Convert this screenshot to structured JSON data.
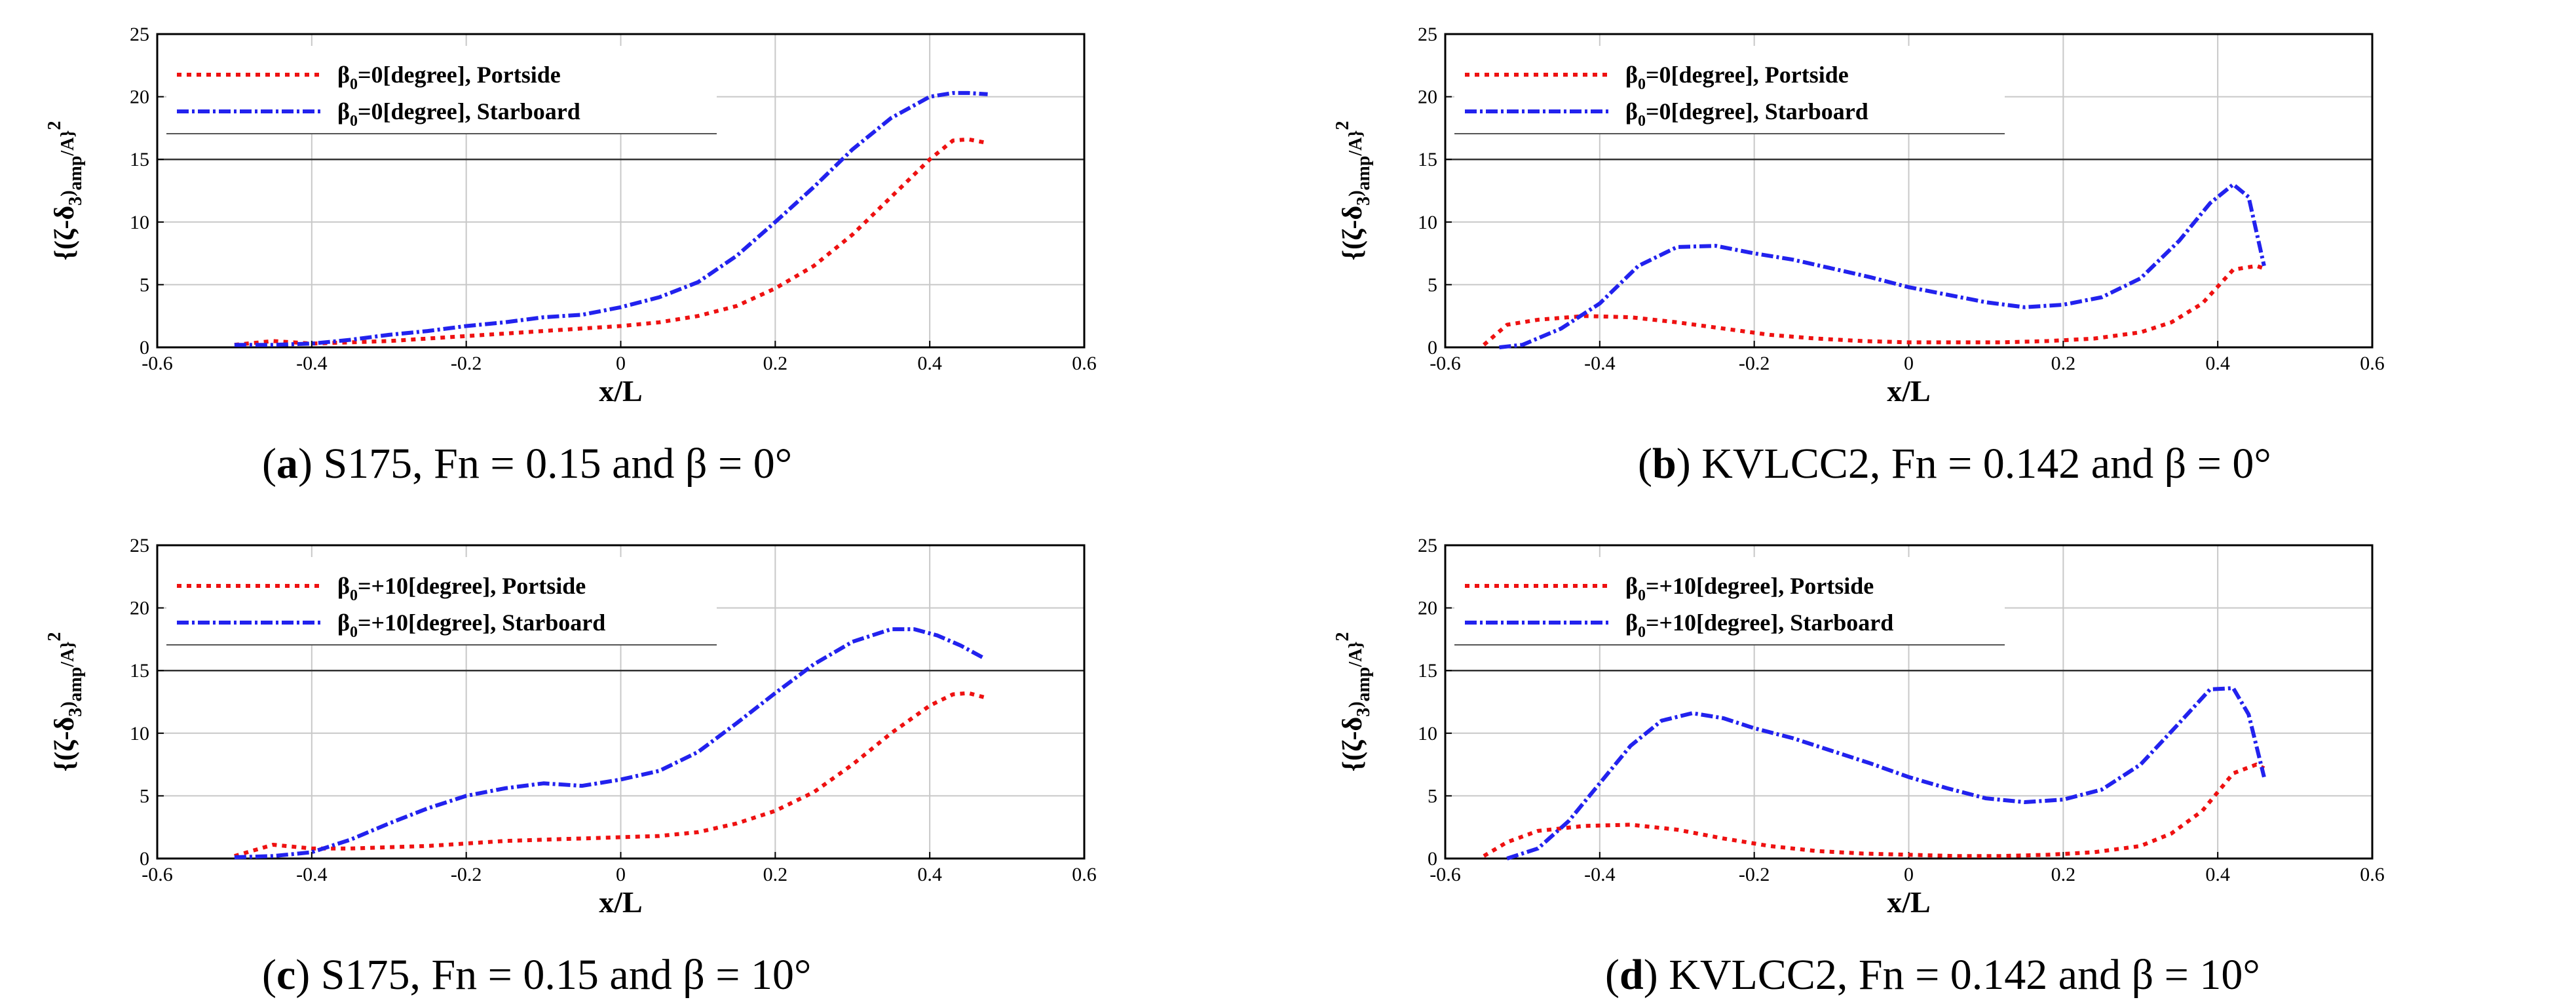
{
  "colors": {
    "portside": "#ee1111",
    "starboard": "#2222ee",
    "axis": "#000000",
    "grid": "#c8c8c8"
  },
  "captions": [
    {
      "letter": "a",
      "text": "S175, Fn = 0.15 and β = 0°"
    },
    {
      "letter": "b",
      "text": "KVLCC2, Fn = 0.142 and β = 0°"
    },
    {
      "letter": "c",
      "text": "S175, Fn = 0.15 and β = 10°"
    },
    {
      "letter": "d",
      "text": "KVLCC2, Fn = 0.142 and β = 10°"
    }
  ],
  "chart_data": [
    {
      "type": "line",
      "xlabel": "x/L",
      "ylabel": "{(ζ-δ3)amp/A}2",
      "xlim": [
        -0.6,
        0.6
      ],
      "ylim": [
        0,
        25
      ],
      "x_ticks": [
        "-0.6",
        "-0.4",
        "-0.2",
        "0",
        "0.2",
        "0.4",
        "0.6"
      ],
      "y_ticks": [
        "0",
        "5",
        "10",
        "15",
        "20",
        "25"
      ],
      "legend_position": "top-left",
      "series": [
        {
          "name": "β0=0[degree], Portside",
          "x": [
            -0.5,
            -0.45,
            -0.4,
            -0.35,
            -0.3,
            -0.25,
            -0.2,
            -0.15,
            -0.1,
            -0.05,
            0,
            0.05,
            0.1,
            0.15,
            0.2,
            0.25,
            0.3,
            0.35,
            0.4,
            0.43,
            0.45,
            0.475
          ],
          "y": [
            0.2,
            0.5,
            0.3,
            0.4,
            0.5,
            0.7,
            0.9,
            1.1,
            1.3,
            1.5,
            1.7,
            2.0,
            2.5,
            3.3,
            4.7,
            6.5,
            9,
            12,
            15,
            16.5,
            16.6,
            16.3
          ]
        },
        {
          "name": "β0=0[degree], Starboard",
          "x": [
            -0.5,
            -0.45,
            -0.4,
            -0.35,
            -0.3,
            -0.25,
            -0.2,
            -0.15,
            -0.1,
            -0.05,
            0,
            0.05,
            0.1,
            0.15,
            0.2,
            0.25,
            0.3,
            0.35,
            0.4,
            0.43,
            0.45,
            0.475
          ],
          "y": [
            0.2,
            0.2,
            0.3,
            0.6,
            1.0,
            1.3,
            1.7,
            2.0,
            2.4,
            2.6,
            3.2,
            4.0,
            5.2,
            7.3,
            10,
            12.8,
            15.8,
            18.3,
            20,
            20.3,
            20.3,
            20.2
          ]
        }
      ]
    },
    {
      "type": "line",
      "xlabel": "x/L",
      "ylabel": "{(ζ-δ3)amp/A}2",
      "xlim": [
        -0.6,
        0.6
      ],
      "ylim": [
        0,
        25
      ],
      "x_ticks": [
        "-0.6",
        "-0.4",
        "-0.2",
        "0",
        "0.2",
        "0.4",
        "0.6"
      ],
      "y_ticks": [
        "0",
        "5",
        "10",
        "15",
        "20",
        "25"
      ],
      "legend_position": "top-left",
      "series": [
        {
          "name": "β0=0[degree], Portside",
          "x": [
            -0.55,
            -0.52,
            -0.48,
            -0.42,
            -0.36,
            -0.3,
            -0.24,
            -0.18,
            -0.12,
            -0.06,
            0,
            0.06,
            0.12,
            0.18,
            0.24,
            0.3,
            0.34,
            0.38,
            0.42,
            0.45,
            0.46
          ],
          "y": [
            0.2,
            1.8,
            2.2,
            2.5,
            2.4,
            2.0,
            1.5,
            1.0,
            0.7,
            0.5,
            0.4,
            0.4,
            0.4,
            0.5,
            0.7,
            1.2,
            2.0,
            3.5,
            6.2,
            6.5,
            6.3
          ]
        },
        {
          "name": "β0=0[degree], Starboard",
          "x": [
            -0.53,
            -0.5,
            -0.45,
            -0.4,
            -0.35,
            -0.3,
            -0.25,
            -0.2,
            -0.15,
            -0.1,
            -0.05,
            0,
            0.05,
            0.1,
            0.15,
            0.2,
            0.25,
            0.3,
            0.35,
            0.39,
            0.42,
            0.44,
            0.46
          ],
          "y": [
            0,
            0.2,
            1.5,
            3.5,
            6.5,
            8.0,
            8.1,
            7.5,
            7.0,
            6.3,
            5.6,
            4.8,
            4.2,
            3.6,
            3.2,
            3.4,
            4.0,
            5.5,
            8.5,
            11.5,
            13.0,
            12,
            6.5
          ]
        }
      ]
    },
    {
      "type": "line",
      "xlabel": "x/L",
      "ylabel": "{(ζ-δ3)amp/A}2",
      "xlim": [
        -0.6,
        0.6
      ],
      "ylim": [
        0,
        25
      ],
      "x_ticks": [
        "-0.6",
        "-0.4",
        "-0.2",
        "0",
        "0.2",
        "0.4",
        "0.6"
      ],
      "y_ticks": [
        "0",
        "5",
        "10",
        "15",
        "20",
        "25"
      ],
      "legend_position": "top-left",
      "series": [
        {
          "name": "β0=+10[degree], Portside",
          "x": [
            -0.5,
            -0.45,
            -0.4,
            -0.35,
            -0.3,
            -0.25,
            -0.2,
            -0.15,
            -0.1,
            -0.05,
            0,
            0.05,
            0.1,
            0.15,
            0.2,
            0.25,
            0.3,
            0.35,
            0.4,
            0.43,
            0.45,
            0.475
          ],
          "y": [
            0.2,
            1.1,
            0.8,
            0.8,
            0.9,
            1.0,
            1.2,
            1.4,
            1.5,
            1.6,
            1.7,
            1.8,
            2.1,
            2.8,
            3.8,
            5.3,
            7.5,
            10,
            12.2,
            13.1,
            13.2,
            12.8
          ]
        },
        {
          "name": "β0=+10[degree], Starboard",
          "x": [
            -0.5,
            -0.45,
            -0.4,
            -0.35,
            -0.3,
            -0.25,
            -0.2,
            -0.15,
            -0.1,
            -0.05,
            0,
            0.05,
            0.1,
            0.15,
            0.2,
            0.25,
            0.3,
            0.35,
            0.38,
            0.41,
            0.44,
            0.47
          ],
          "y": [
            0.1,
            0.2,
            0.5,
            1.5,
            2.8,
            4.0,
            5.0,
            5.6,
            6.0,
            5.8,
            6.3,
            7.0,
            8.5,
            10.8,
            13.2,
            15.5,
            17.3,
            18.3,
            18.3,
            17.8,
            17.0,
            16.0
          ]
        }
      ]
    },
    {
      "type": "line",
      "xlabel": "x/L",
      "ylabel": "{(ζ-δ3)amp/A}2",
      "xlim": [
        -0.6,
        0.6
      ],
      "ylim": [
        0,
        25
      ],
      "x_ticks": [
        "-0.6",
        "-0.4",
        "-0.2",
        "0",
        "0.2",
        "0.4",
        "0.6"
      ],
      "y_ticks": [
        "0",
        "5",
        "10",
        "15",
        "20",
        "25"
      ],
      "legend_position": "top-left",
      "series": [
        {
          "name": "β0=+10[degree], Portside",
          "x": [
            -0.55,
            -0.52,
            -0.48,
            -0.42,
            -0.36,
            -0.3,
            -0.24,
            -0.18,
            -0.12,
            -0.06,
            0,
            0.06,
            0.12,
            0.18,
            0.24,
            0.3,
            0.34,
            0.38,
            0.42,
            0.45,
            0.46
          ],
          "y": [
            0.2,
            1.3,
            2.2,
            2.6,
            2.7,
            2.3,
            1.6,
            1.0,
            0.6,
            0.4,
            0.3,
            0.2,
            0.2,
            0.3,
            0.5,
            1.0,
            2.0,
            3.8,
            6.8,
            7.5,
            7.2
          ]
        },
        {
          "name": "β0=+10[degree], Starboard",
          "x": [
            -0.52,
            -0.48,
            -0.44,
            -0.4,
            -0.36,
            -0.32,
            -0.28,
            -0.24,
            -0.2,
            -0.15,
            -0.1,
            -0.05,
            0,
            0.05,
            0.1,
            0.15,
            0.2,
            0.25,
            0.3,
            0.35,
            0.39,
            0.42,
            0.44,
            0.46
          ],
          "y": [
            0,
            0.8,
            3.0,
            6.0,
            9.0,
            11.0,
            11.6,
            11.2,
            10.4,
            9.6,
            8.6,
            7.6,
            6.5,
            5.6,
            4.8,
            4.5,
            4.7,
            5.5,
            7.5,
            10.8,
            13.5,
            13.6,
            11.5,
            6.5
          ]
        }
      ]
    }
  ]
}
